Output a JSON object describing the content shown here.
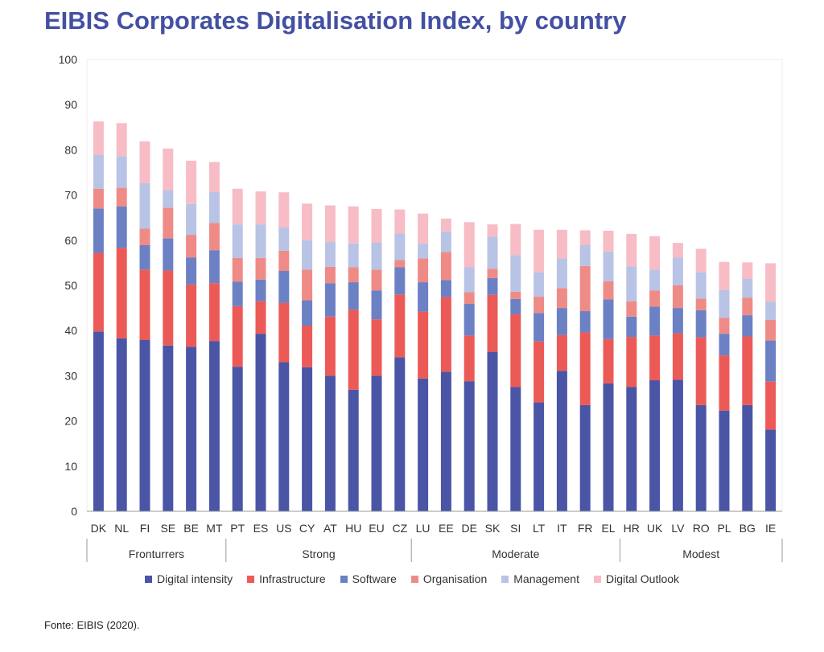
{
  "title": "EIBIS Corporates Digitalisation Index, by country",
  "source": "Fonte: EIBIS (2020).",
  "chart_data": {
    "type": "bar",
    "stacked": true,
    "title": "EIBIS Corporates Digitalisation Index, by country",
    "ylim": [
      0,
      100
    ],
    "yticks": [
      0,
      10,
      20,
      30,
      40,
      50,
      60,
      70,
      80,
      90,
      100
    ],
    "grid": true,
    "legend_position": "bottom",
    "categories": [
      "DK",
      "NL",
      "FI",
      "SE",
      "BE",
      "MT",
      "PT",
      "ES",
      "US",
      "CY",
      "AT",
      "HU",
      "EU",
      "CZ",
      "LU",
      "EE",
      "DE",
      "SK",
      "SI",
      "LT",
      "IT",
      "FR",
      "EL",
      "HR",
      "UK",
      "LV",
      "RO",
      "PL",
      "BG",
      "IE"
    ],
    "groups": [
      {
        "label": "Fronturrers",
        "start": 0,
        "end": 5
      },
      {
        "label": "Strong",
        "start": 6,
        "end": 13
      },
      {
        "label": "Moderate",
        "start": 14,
        "end": 22
      },
      {
        "label": "Modest",
        "start": 23,
        "end": 29
      }
    ],
    "series": [
      {
        "name": "Digital intensity",
        "color": "#4a55a6",
        "values": [
          39.8,
          38.3,
          37.9,
          36.7,
          36.4,
          37.7,
          32.0,
          39.3,
          33.0,
          31.9,
          30.0,
          26.9,
          30.0,
          34.1,
          29.4,
          30.9,
          28.8,
          35.3,
          27.5,
          24.1,
          31.1,
          23.5,
          28.3,
          27.5,
          29.0,
          29.1,
          23.5,
          22.3,
          23.5,
          18.1
        ]
      },
      {
        "name": "Infrastructure",
        "color": "#ec5a57",
        "values": [
          17.4,
          20.0,
          15.6,
          16.6,
          13.8,
          12.8,
          13.4,
          7.2,
          13.1,
          9.2,
          13.1,
          17.7,
          12.5,
          13.9,
          14.8,
          16.5,
          10.1,
          12.6,
          16.1,
          13.5,
          7.9,
          16.1,
          9.8,
          11.1,
          9.9,
          10.3,
          15.0,
          12.2,
          15.2,
          10.6
        ]
      },
      {
        "name": "Software",
        "color": "#6c80c4",
        "values": [
          9.8,
          9.2,
          5.4,
          7.1,
          6.0,
          7.3,
          5.4,
          4.8,
          7.1,
          5.6,
          7.4,
          6.1,
          6.4,
          6.0,
          6.5,
          3.8,
          7.0,
          3.7,
          3.4,
          6.3,
          6.0,
          4.7,
          8.8,
          4.5,
          6.4,
          5.6,
          6.0,
          4.8,
          4.7,
          9.1
        ]
      },
      {
        "name": "Organisation",
        "color": "#ef8b87",
        "values": [
          4.4,
          4.1,
          3.7,
          6.8,
          5.0,
          6.0,
          5.3,
          4.8,
          4.5,
          6.8,
          3.6,
          3.3,
          4.6,
          1.6,
          5.3,
          6.2,
          2.6,
          2.1,
          1.6,
          3.6,
          4.4,
          10.0,
          4.0,
          3.4,
          3.6,
          5.0,
          2.6,
          3.5,
          3.9,
          4.6
        ]
      },
      {
        "name": "Management",
        "color": "#b8c3e5",
        "values": [
          7.5,
          7.0,
          10.0,
          3.9,
          6.8,
          6.9,
          7.4,
          7.4,
          5.1,
          6.5,
          5.5,
          5.3,
          6.0,
          5.9,
          3.2,
          4.5,
          5.5,
          7.1,
          8.1,
          5.4,
          6.6,
          4.7,
          6.6,
          7.7,
          4.6,
          6.2,
          5.8,
          6.2,
          4.2,
          4.0
        ]
      },
      {
        "name": "Digital Outlook",
        "color": "#f7bcc5",
        "values": [
          7.4,
          7.3,
          9.3,
          9.2,
          9.6,
          6.6,
          7.9,
          7.3,
          7.8,
          8.1,
          8.1,
          8.2,
          7.4,
          5.3,
          6.7,
          2.9,
          10.0,
          2.7,
          6.9,
          9.4,
          6.3,
          3.2,
          4.6,
          7.2,
          7.4,
          3.2,
          5.2,
          6.2,
          3.6,
          8.5
        ]
      }
    ]
  }
}
